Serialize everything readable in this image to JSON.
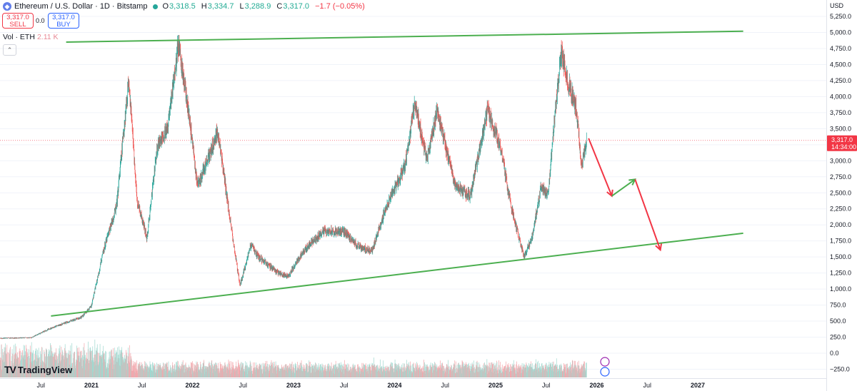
{
  "header": {
    "symbol_title": "Ethereum / U.S. Dollar · 1D · Bitstamp",
    "ohlc": {
      "o": "3,318.5",
      "h": "3,334.7",
      "l": "3,288.9",
      "c": "3,317.0",
      "change": "−1.7 (−0.05%)"
    }
  },
  "trade": {
    "sell_price": "3,317.0",
    "sell_label": "SELL",
    "spread": "0.0",
    "buy_price": "3,317.0",
    "buy_label": "BUY"
  },
  "volume_legend": {
    "label": "Vol · ETH",
    "value": "2.11 K"
  },
  "branding": {
    "logo_text": "TradingView"
  },
  "price_axis": {
    "currency": "USD",
    "ticks": [
      "5,250.0",
      "5,000.0",
      "4,750.0",
      "4,500.0",
      "4,250.0",
      "4,000.0",
      "3,750.0",
      "3,500.0",
      "3,250.0",
      "3,000.0",
      "2,750.0",
      "2,500.0",
      "2,250.0",
      "2,000.0",
      "1,750.0",
      "1,500.0",
      "1,250.0",
      "1,000.0",
      "750.0",
      "500.0",
      "250.0",
      "0.0",
      "−250.0"
    ]
  },
  "last_price": {
    "value": "3,317.0",
    "countdown": "14:34:00"
  },
  "colors": {
    "up": "#26a69a",
    "down": "#ef5350",
    "trendline": "#4caf50",
    "projection_down": "#f23645",
    "projection_up": "#4caf50",
    "price_label": "#f23645"
  },
  "chart_data": {
    "type": "candlestick",
    "symbol": "ETHUSD",
    "interval": "1D",
    "time_axis_labels": [
      "Jul",
      "2021",
      "Jul",
      "2022",
      "Jul",
      "2023",
      "Jul",
      "2024",
      "Jul",
      "2025",
      "Jul",
      "2026",
      "Jul",
      "2027"
    ],
    "ylim": [
      -320,
      5350
    ],
    "price_path": [
      {
        "t": 2020.0,
        "p": 230
      },
      {
        "t": 2020.4,
        "p": 240
      },
      {
        "t": 2020.6,
        "p": 390
      },
      {
        "t": 2020.9,
        "p": 560
      },
      {
        "t": 2021.0,
        "p": 740
      },
      {
        "t": 2021.12,
        "p": 1600
      },
      {
        "t": 2021.25,
        "p": 2300
      },
      {
        "t": 2021.37,
        "p": 4300
      },
      {
        "t": 2021.45,
        "p": 2400
      },
      {
        "t": 2021.55,
        "p": 1800
      },
      {
        "t": 2021.65,
        "p": 3200
      },
      {
        "t": 2021.75,
        "p": 3500
      },
      {
        "t": 2021.86,
        "p": 4800
      },
      {
        "t": 2021.95,
        "p": 3900
      },
      {
        "t": 2022.05,
        "p": 2600
      },
      {
        "t": 2022.25,
        "p": 3450
      },
      {
        "t": 2022.38,
        "p": 2000
      },
      {
        "t": 2022.47,
        "p": 1050
      },
      {
        "t": 2022.58,
        "p": 1700
      },
      {
        "t": 2022.65,
        "p": 1500
      },
      {
        "t": 2022.85,
        "p": 1250
      },
      {
        "t": 2022.95,
        "p": 1200
      },
      {
        "t": 2023.1,
        "p": 1600
      },
      {
        "t": 2023.3,
        "p": 1900
      },
      {
        "t": 2023.5,
        "p": 1900
      },
      {
        "t": 2023.65,
        "p": 1650
      },
      {
        "t": 2023.78,
        "p": 1600
      },
      {
        "t": 2023.92,
        "p": 2300
      },
      {
        "t": 2024.1,
        "p": 2900
      },
      {
        "t": 2024.2,
        "p": 3900
      },
      {
        "t": 2024.32,
        "p": 3000
      },
      {
        "t": 2024.42,
        "p": 3800
      },
      {
        "t": 2024.6,
        "p": 2600
      },
      {
        "t": 2024.75,
        "p": 2450
      },
      {
        "t": 2024.92,
        "p": 3800
      },
      {
        "t": 2025.05,
        "p": 3200
      },
      {
        "t": 2025.15,
        "p": 2300
      },
      {
        "t": 2025.28,
        "p": 1500
      },
      {
        "t": 2025.36,
        "p": 1800
      },
      {
        "t": 2025.45,
        "p": 2600
      },
      {
        "t": 2025.52,
        "p": 2450
      },
      {
        "t": 2025.58,
        "p": 3600
      },
      {
        "t": 2025.65,
        "p": 4700
      },
      {
        "t": 2025.72,
        "p": 4200
      },
      {
        "t": 2025.8,
        "p": 3800
      },
      {
        "t": 2025.85,
        "p": 2900
      },
      {
        "t": 2025.9,
        "p": 3317
      }
    ],
    "annotations": {
      "upper_trendline": [
        {
          "t": 2020.75,
          "p": 4850
        },
        {
          "t": 2027.45,
          "p": 5020
        }
      ],
      "lower_trendline": [
        {
          "t": 2020.6,
          "p": 580
        },
        {
          "t": 2027.45,
          "p": 1870
        }
      ],
      "projection": [
        {
          "t": 2025.92,
          "p": 3350
        },
        {
          "t": 2026.15,
          "p": 2450
        },
        {
          "t": 2026.38,
          "p": 2710
        },
        {
          "t": 2026.63,
          "p": 1610
        }
      ]
    }
  }
}
